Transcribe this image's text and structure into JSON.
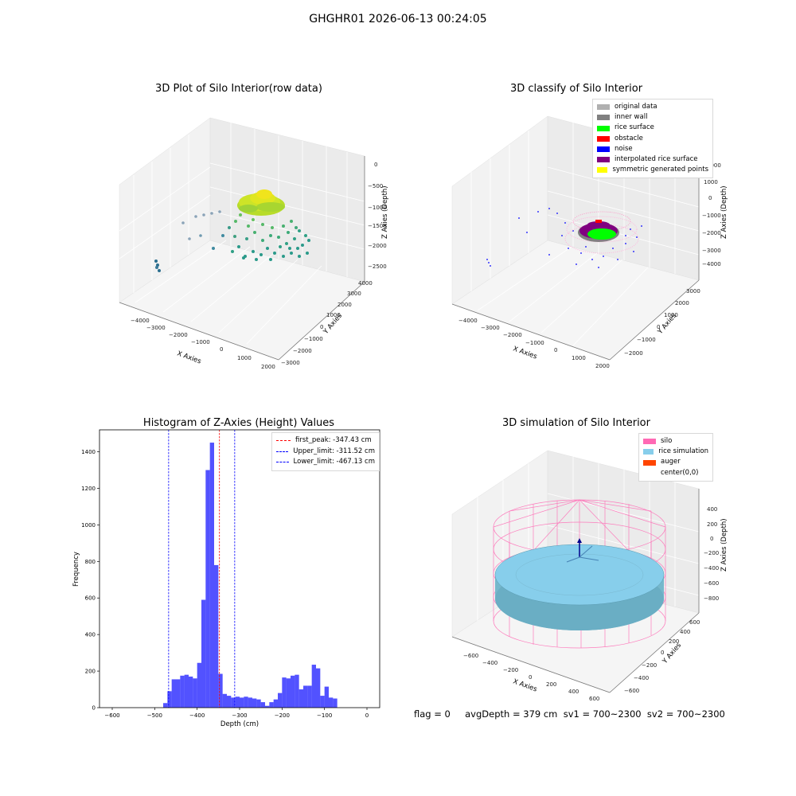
{
  "suptitle": "GHGHR01 2026-06-13 00:24:05",
  "panel_raw": {
    "title": "3D Plot of Silo Interior(row data)",
    "xlabel": "X Axies",
    "ylabel": "Y Axies",
    "zlabel": "Z Axies (Depth)",
    "xticks": [
      "−4000",
      "−3000",
      "−2000",
      "−1000",
      "0",
      "1000",
      "2000"
    ],
    "yticks": [
      "−3000",
      "−2000",
      "−1000",
      "0",
      "1000",
      "2000",
      "3000",
      "4000"
    ],
    "zticks": [
      "0",
      "−500",
      "−1000",
      "−1500",
      "−2000",
      "−2500"
    ]
  },
  "panel_classify": {
    "title": "3D classify of Silo Interior",
    "xlabel": "X Axies",
    "ylabel": "Y Axies",
    "zlabel": "Z Axies (Depth)",
    "xticks": [
      "−4000",
      "−3000",
      "−2000",
      "−1000",
      "0",
      "1000",
      "2000"
    ],
    "yticks": [
      "−2000",
      "−1000",
      "0",
      "1000",
      "2000",
      "3000"
    ],
    "zticks": [
      "2000",
      "1000",
      "0",
      "−1000",
      "−2000",
      "−3000",
      "−4000"
    ],
    "legend": [
      {
        "label": "original data",
        "color": "#b0b0b0"
      },
      {
        "label": "inner wall",
        "color": "#808080"
      },
      {
        "label": "rice surface",
        "color": "#00ff00"
      },
      {
        "label": "obstacle",
        "color": "#ff0000"
      },
      {
        "label": "noise",
        "color": "#0000ff"
      },
      {
        "label": "interpolated rice surface",
        "color": "#800080"
      },
      {
        "label": "symmetric generated points",
        "color": "#ffff00"
      }
    ]
  },
  "panel_sim": {
    "title": "3D simulation of Silo Interior",
    "xlabel": "X Axies",
    "ylabel": "Y Axies",
    "zlabel": "Z Axies (Depth)",
    "xticks": [
      "−600",
      "−400",
      "−200",
      "0",
      "200",
      "400",
      "600"
    ],
    "yticks": [
      "−600",
      "−400",
      "−200",
      "0",
      "200",
      "400",
      "600"
    ],
    "zticks": [
      "400",
      "200",
      "0",
      "−200",
      "−400",
      "−600",
      "−800"
    ],
    "legend": [
      {
        "label": "silo",
        "color": "#ff69b4"
      },
      {
        "label": "rice simulation",
        "color": "#87ceeb"
      },
      {
        "label": "auger",
        "color": "#ff4500"
      },
      {
        "label": "center(0,0)",
        "color": ""
      }
    ]
  },
  "chart_data": {
    "type": "bar",
    "title": "Histogram of Z-Axies (Height) Values",
    "xlabel": "Depth (cm)",
    "ylabel": "Frequency",
    "xlim": [
      -630,
      30
    ],
    "ylim": [
      0,
      1520
    ],
    "xticks": [
      -600,
      -500,
      -400,
      -300,
      -200,
      -100,
      0
    ],
    "yticks": [
      0,
      200,
      400,
      600,
      800,
      1000,
      1200,
      1400
    ],
    "bar_color": "#0000ff",
    "bin_width": 10,
    "bin_starts": [
      -480,
      -470,
      -460,
      -450,
      -440,
      -430,
      -420,
      -410,
      -400,
      -390,
      -380,
      -370,
      -360,
      -350,
      -340,
      -330,
      -320,
      -310,
      -300,
      -290,
      -280,
      -270,
      -260,
      -250,
      -240,
      -230,
      -220,
      -210,
      -200,
      -190,
      -180,
      -170,
      -160,
      -150,
      -140,
      -130,
      -120,
      -110,
      -100,
      -90,
      -80,
      -70,
      -60,
      -50,
      -40,
      -30,
      -20,
      -10
    ],
    "values": [
      25,
      90,
      155,
      155,
      175,
      180,
      170,
      160,
      245,
      590,
      1300,
      1450,
      780,
      185,
      75,
      65,
      55,
      60,
      55,
      60,
      55,
      50,
      45,
      30,
      10,
      30,
      45,
      80,
      165,
      160,
      175,
      180,
      100,
      120,
      120,
      235,
      215,
      65,
      115,
      55,
      50,
      0,
      0,
      0,
      0,
      0,
      0,
      0
    ],
    "lines": [
      {
        "label": "first_peak: -347.43 cm",
        "x": -347.43,
        "color": "#ff0000"
      },
      {
        "label": "Upper_limit: -311.52 cm",
        "x": -311.52,
        "color": "#0000ff"
      },
      {
        "label": "Lower_limit: -467.13 cm",
        "x": -467.13,
        "color": "#0000ff"
      }
    ],
    "legend_position": "upper right"
  },
  "footer": "flag = 0     avgDepth = 379 cm  sv1 = 700~2300  sv2 = 700~2300"
}
